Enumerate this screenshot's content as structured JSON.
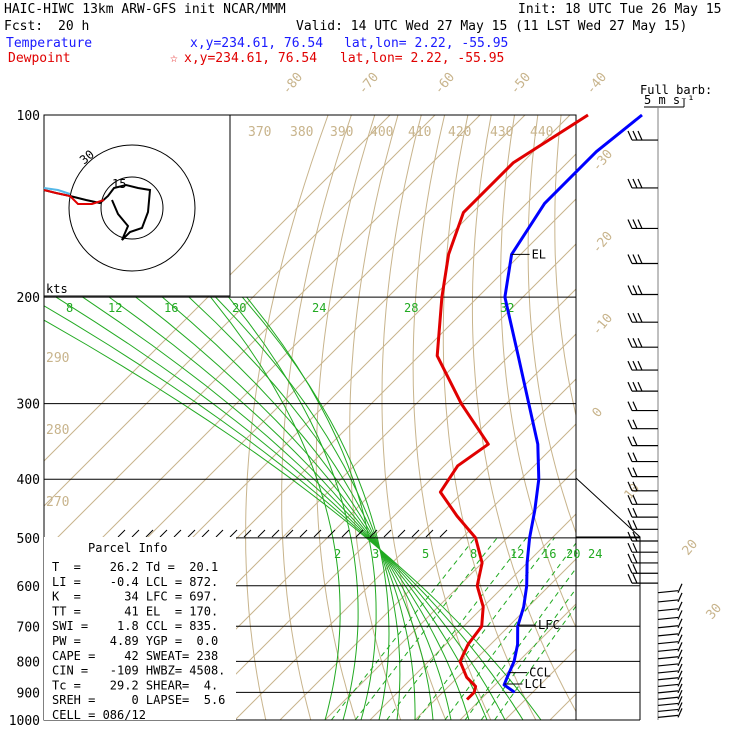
{
  "header": {
    "line1_left": "HAIC-HIWC 13km ARW-GFS init   NCAR/MMM",
    "line1_right": "Init: 18 UTC Tue 26 May 15",
    "fcst_label": "Fcst:",
    "fcst_value": "20 h",
    "valid": "Valid: 14 UTC Wed 27 May 15 (11 LST Wed 27 May 15)",
    "temperature_label": "Temperature",
    "temperature_xy": "x,y=234.61, 76.54",
    "temperature_latlon": "lat,lon=  2.22, -55.95",
    "dewpoint_label": "Dewpoint",
    "dewpoint_star": "☆",
    "dewpoint_xy": "x,y=234.61, 76.54",
    "dewpoint_latlon": "lat,lon=  2.22, -55.95"
  },
  "barb_key": {
    "line1": "Full barb:",
    "line2": "5 m s⁻¹"
  },
  "hodograph": {
    "units": "kts",
    "ring_label": "30",
    "inner_label": "15"
  },
  "parcel_info": {
    "title": "Parcel Info",
    "rows": [
      "T  =    26.2 Td =  20.1",
      "LI =    -0.4 LCL = 872.",
      "K  =      34 LFC = 697.",
      "TT =      41 EL  = 170.",
      "SWI =    1.8 CCL = 835.",
      "PW =    4.89 YGP =  0.0",
      "CAPE =    42 SWEAT= 238",
      "CIN =   -109 HWBZ= 4508.",
      "Tc =    29.2 SHEAR=  4.",
      "SREH =     0 LAPSE=  5.6",
      "CELL = 086/12"
    ]
  },
  "chart_data": {
    "type": "line",
    "title": "",
    "y_axis": {
      "quantity": "pressure",
      "scale": "log",
      "ticks": [
        100,
        200,
        300,
        400,
        500,
        600,
        700,
        800,
        900,
        1000
      ]
    },
    "isotherm_labels": [
      "-80",
      "-70",
      "-60",
      "-50",
      "-40",
      "-30",
      "-20",
      "-10",
      "0",
      "10",
      "20",
      "30",
      "40"
    ],
    "dry_adiabat_labels": [
      "370",
      "380",
      "390",
      "400",
      "410",
      "420",
      "430",
      "440",
      "290",
      "280",
      "270"
    ],
    "mixing_ratio_labels_upper": [
      "8",
      "12",
      "16",
      "20",
      "24",
      "28",
      "32"
    ],
    "mixing_ratio_labels_lower": [
      "2",
      "3",
      "5",
      "8",
      "12",
      "16",
      "20",
      "24"
    ],
    "levels": [
      {
        "name": "EL",
        "pressure": 170
      },
      {
        "name": "LFC",
        "pressure": 697
      },
      {
        "name": "CCL",
        "pressure": 835
      },
      {
        "name": "LCL",
        "pressure": 872
      }
    ],
    "series": [
      {
        "name": "Temperature",
        "color": "#0000ff",
        "points": [
          [
            100,
            -74
          ],
          [
            115,
            -76
          ],
          [
            140,
            -76
          ],
          [
            170,
            -72
          ],
          [
            200,
            -64
          ],
          [
            250,
            -48
          ],
          [
            300,
            -35
          ],
          [
            350,
            -24
          ],
          [
            400,
            -16
          ],
          [
            450,
            -10
          ],
          [
            500,
            -5
          ],
          [
            550,
            0
          ],
          [
            600,
            5
          ],
          [
            650,
            9
          ],
          [
            700,
            12
          ],
          [
            750,
            16
          ],
          [
            800,
            19
          ],
          [
            850,
            21
          ],
          [
            875,
            22
          ],
          [
            900,
            26
          ]
        ]
      },
      {
        "name": "Dewpoint",
        "color": "#e00000",
        "points": [
          [
            100,
            -86
          ],
          [
            120,
            -92
          ],
          [
            145,
            -92
          ],
          [
            170,
            -86
          ],
          [
            200,
            -78
          ],
          [
            250,
            -66
          ],
          [
            300,
            -50
          ],
          [
            350,
            -35
          ],
          [
            380,
            -37
          ],
          [
            420,
            -35
          ],
          [
            460,
            -26
          ],
          [
            500,
            -17
          ],
          [
            550,
            -10
          ],
          [
            600,
            -6
          ],
          [
            650,
            0
          ],
          [
            700,
            4
          ],
          [
            750,
            5
          ],
          [
            800,
            7
          ],
          [
            850,
            12
          ],
          [
            880,
            16
          ],
          [
            900,
            17
          ],
          [
            925,
            17
          ]
        ]
      }
    ],
    "colors": {
      "temperature": "#0000ff",
      "dewpoint": "#e00000",
      "isotherm": "#c8b48c",
      "mixing_ratio": "#22aa22",
      "frame": "#000000"
    }
  }
}
